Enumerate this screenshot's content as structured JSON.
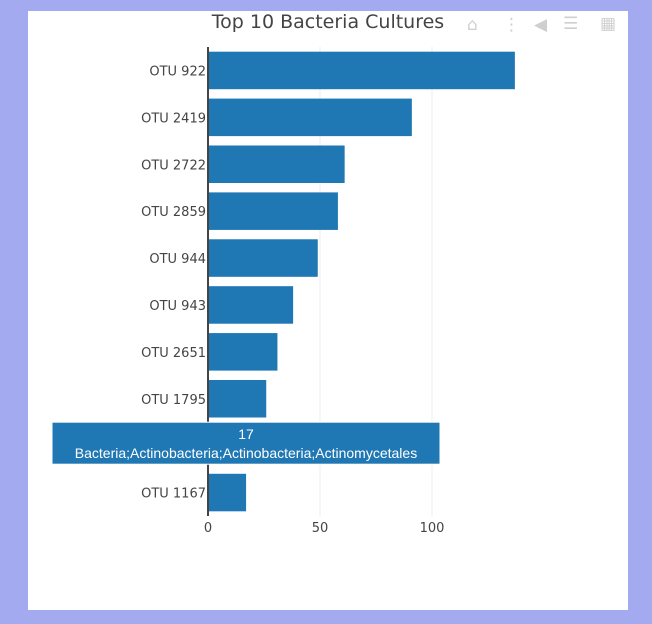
{
  "chart_data": {
    "type": "bar",
    "orientation": "horizontal",
    "title": "Top 10 Bacteria Cultures",
    "categories": [
      "OTU 922",
      "OTU 2419",
      "OTU 2722",
      "OTU 2859",
      "OTU 944",
      "OTU 943",
      "OTU 2651",
      "OTU 1795",
      "",
      "OTU 1167"
    ],
    "values": [
      137,
      91,
      61,
      58,
      49,
      38,
      31,
      26,
      17,
      17
    ],
    "xlim": [
      0,
      140
    ],
    "xticks": [
      0,
      50,
      100
    ],
    "bar_color": "#1f77b4",
    "gridlines": true,
    "hover_label": {
      "bar_index": 8,
      "value": "17",
      "text": "Bacteria;Actinobacteria;Actinobacteria;Actinomycetales"
    }
  },
  "modebar": {
    "icons": [
      "camera-icon",
      "zoom-icon",
      "pan-icon",
      "box-select-icon",
      "lasso-icon",
      "zoom-in-icon",
      "zoom-out-icon",
      "autoscale-icon",
      "home-icon",
      "spike-lines-icon",
      "hover-closest-icon",
      "hover-compare-icon",
      "plotly-logo-icon"
    ],
    "color": "#cfcfcf"
  }
}
